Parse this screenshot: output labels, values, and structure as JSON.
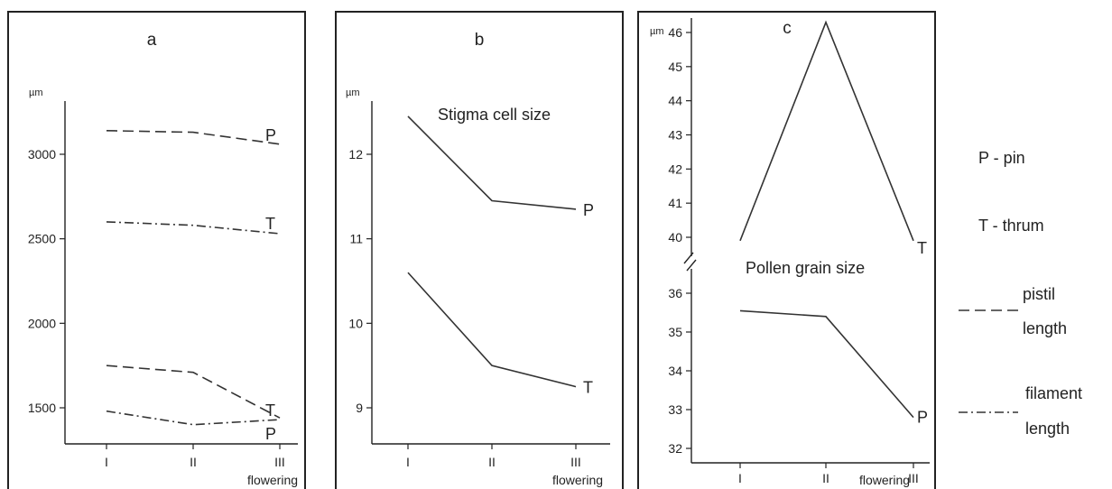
{
  "chart_data": [
    {
      "panel": "a",
      "type": "line",
      "unit": "µm",
      "categories": [
        "I",
        "II",
        "III"
      ],
      "xlabel": "flowering",
      "yticks": [
        1500,
        2000,
        2500,
        3000
      ],
      "ylim": [
        1300,
        3300
      ],
      "series": [
        {
          "role": "pistil length",
          "morph": "P",
          "label": "P",
          "style": "dashed",
          "values": [
            3140,
            3130,
            3060
          ]
        },
        {
          "role": "filament length",
          "morph": "T",
          "label": "T",
          "style": "dashdot",
          "values": [
            2600,
            2580,
            2530
          ]
        },
        {
          "role": "pistil length",
          "morph": "T",
          "label": "T",
          "style": "dashed",
          "values": [
            1750,
            1710,
            1440
          ]
        },
        {
          "role": "filament length",
          "morph": "P",
          "label": "P",
          "style": "dashdot",
          "values": [
            1480,
            1400,
            1430
          ]
        }
      ]
    },
    {
      "panel": "b",
      "type": "line",
      "unit": "µm",
      "title": "Stigma cell size",
      "categories": [
        "I",
        "II",
        "III"
      ],
      "xlabel": "flowering",
      "yticks": [
        9,
        10,
        11,
        12
      ],
      "ylim": [
        8.6,
        12.8
      ],
      "series": [
        {
          "morph": "P",
          "label": "P",
          "style": "solid",
          "values": [
            12.45,
            11.45,
            11.35
          ]
        },
        {
          "morph": "T",
          "label": "T",
          "style": "solid",
          "values": [
            10.6,
            9.5,
            9.25
          ]
        }
      ]
    },
    {
      "panel": "c",
      "type": "line",
      "unit": "µm",
      "title": "Pollen grain size",
      "categories": [
        "I",
        "II",
        "III"
      ],
      "xlabel": "flowering",
      "yticks_upper": [
        40,
        41,
        42,
        43,
        44,
        45,
        46
      ],
      "yticks_lower": [
        32,
        33,
        34,
        35,
        36
      ],
      "axis_break": true,
      "series": [
        {
          "morph": "T",
          "label": "T",
          "style": "solid",
          "values": [
            39.9,
            46.3,
            39.9
          ]
        },
        {
          "morph": "P",
          "label": "P",
          "style": "solid",
          "values": [
            35.55,
            35.4,
            32.8
          ]
        }
      ]
    }
  ],
  "legend": {
    "pin": "P - pin",
    "thrum": "T - thrum",
    "pistil": [
      "pistil",
      "length"
    ],
    "filament": [
      "filament",
      "length"
    ]
  }
}
